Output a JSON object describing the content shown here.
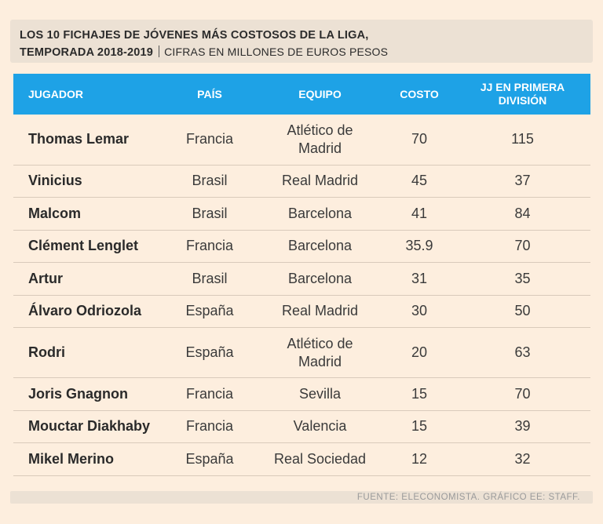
{
  "header": {
    "title_line1": "LOS 10 FICHAJES DE JÓVENES MÁS COSTOSOS DE LA LIGA,",
    "title_line2": "TEMPORADA 2018-2019",
    "subtitle": "CIFRAS EN MILLONES DE EUROS PESOS"
  },
  "columns": {
    "player": "JUGADOR",
    "country": "PAÍS",
    "team": "EQUIPO",
    "cost": "COSTO",
    "games_line1": "JJ EN PRIMERA",
    "games_line2": "DIVISIÓN"
  },
  "rows": [
    {
      "player": "Thomas Lemar",
      "country": "Francia",
      "team_line1": "Atlético de",
      "team_line2": "Madrid",
      "cost": "70",
      "games": "115"
    },
    {
      "player": "Vinicius",
      "country": "Brasil",
      "team_line1": "Real Madrid",
      "team_line2": "",
      "cost": "45",
      "games": "37"
    },
    {
      "player": "Malcom",
      "country": "Brasil",
      "team_line1": "Barcelona",
      "team_line2": "",
      "cost": "41",
      "games": "84"
    },
    {
      "player": "Clément Lenglet",
      "country": "Francia",
      "team_line1": "Barcelona",
      "team_line2": "",
      "cost": "35.9",
      "games": "70"
    },
    {
      "player": "Artur",
      "country": "Brasil",
      "team_line1": "Barcelona",
      "team_line2": "",
      "cost": "31",
      "games": "35"
    },
    {
      "player": "Álvaro Odriozola",
      "country": "España",
      "team_line1": "Real Madrid",
      "team_line2": "",
      "cost": "30",
      "games": "50"
    },
    {
      "player": "Rodri",
      "country": "España",
      "team_line1": "Atlético de",
      "team_line2": "Madrid",
      "cost": "20",
      "games": "63"
    },
    {
      "player": "Joris Gnagnon",
      "country": "Francia",
      "team_line1": "Sevilla",
      "team_line2": "",
      "cost": "15",
      "games": "70"
    },
    {
      "player": "Mouctar Diakhaby",
      "country": "Francia",
      "team_line1": "Valencia",
      "team_line2": "",
      "cost": "15",
      "games": "39"
    },
    {
      "player": "Mikel Merino",
      "country": "España",
      "team_line1": "Real Sociedad",
      "team_line2": "",
      "cost": "12",
      "games": "32"
    }
  ],
  "footer": {
    "source": "FUENTE: ELECONOMISTA. GRÁFICO EE: STAFF."
  },
  "colors": {
    "header_bg": "#1ea2e6",
    "page_bg": "#fdeede",
    "title_bg": "#ece1d4"
  },
  "chart_data": {
    "type": "table",
    "title": "LOS 10 FICHAJES DE JÓVENES MÁS COSTOSOS DE LA LIGA, TEMPORADA 2018-2019",
    "subtitle": "CIFRAS EN MILLONES DE EUROS PESOS",
    "columns": [
      "JUGADOR",
      "PAÍS",
      "EQUIPO",
      "COSTO",
      "JJ EN PRIMERA DIVISIÓN"
    ],
    "rows": [
      [
        "Thomas Lemar",
        "Francia",
        "Atlético de Madrid",
        70,
        115
      ],
      [
        "Vinicius",
        "Brasil",
        "Real Madrid",
        45,
        37
      ],
      [
        "Malcom",
        "Brasil",
        "Barcelona",
        41,
        84
      ],
      [
        "Clément Lenglet",
        "Francia",
        "Barcelona",
        35.9,
        70
      ],
      [
        "Artur",
        "Brasil",
        "Barcelona",
        31,
        35
      ],
      [
        "Álvaro Odriozola",
        "España",
        "Real Madrid",
        30,
        50
      ],
      [
        "Rodri",
        "España",
        "Atlético de Madrid",
        20,
        63
      ],
      [
        "Joris Gnagnon",
        "Francia",
        "Sevilla",
        15,
        70
      ],
      [
        "Mouctar Diakhaby",
        "Francia",
        "Valencia",
        15,
        39
      ],
      [
        "Mikel Merino",
        "España",
        "Real Sociedad",
        12,
        32
      ]
    ]
  }
}
